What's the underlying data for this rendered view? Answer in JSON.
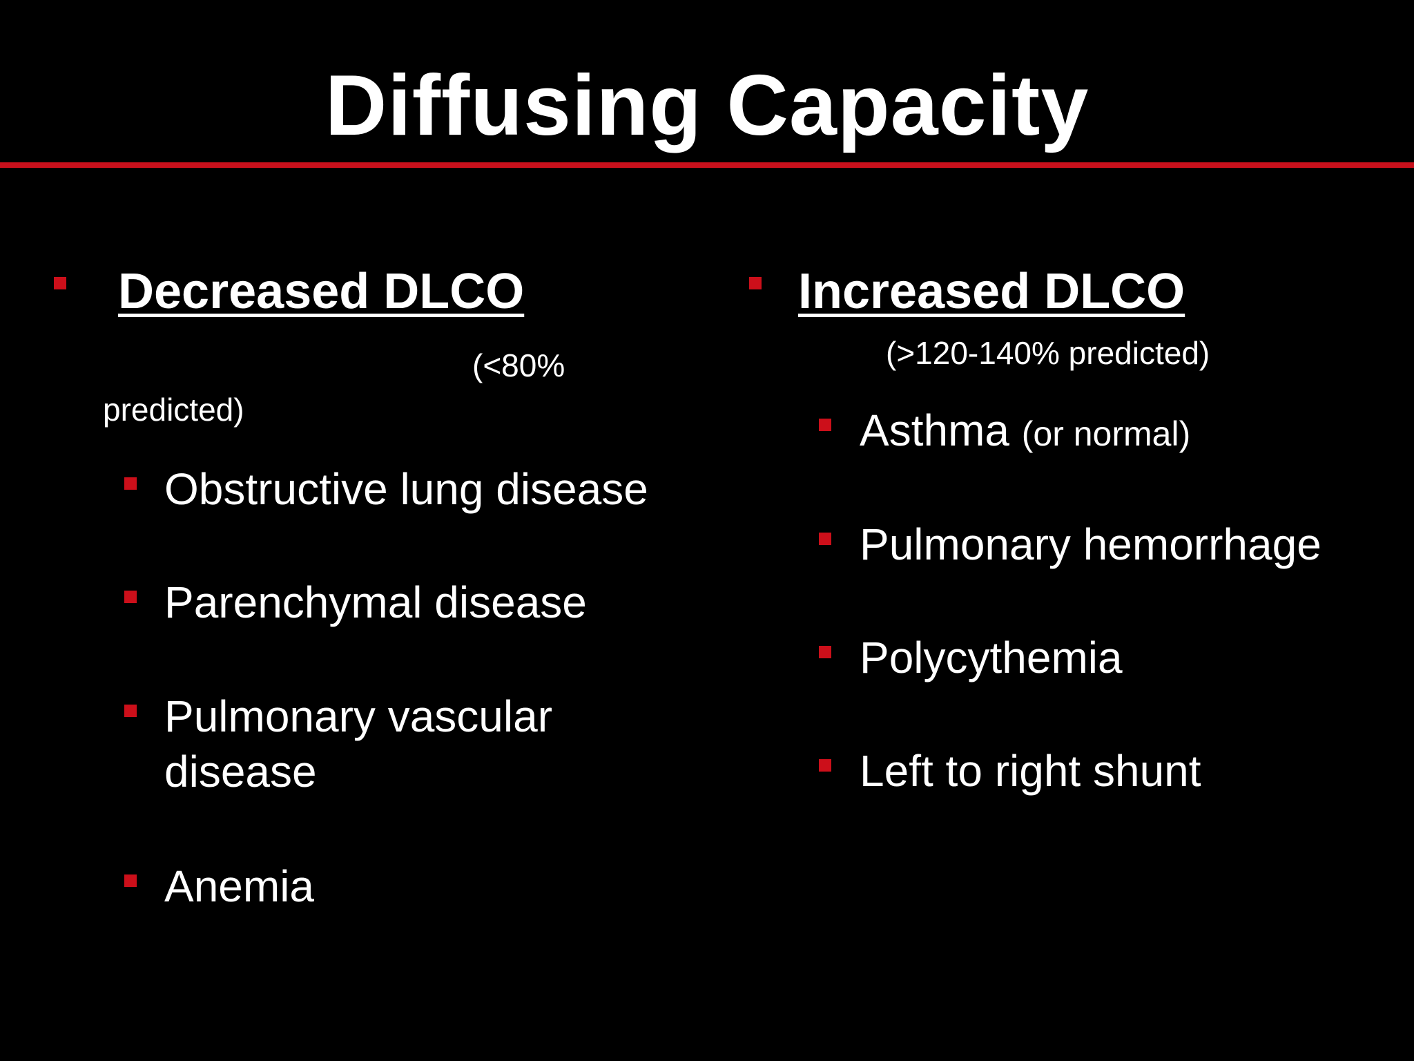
{
  "slide": {
    "title": "Diffusing Capacity",
    "accent_color": "#c8101c",
    "bullet_color": "#cc0f1a",
    "left_column": {
      "heading": "Decreased DLCO",
      "note_line1": "(<80%",
      "note_line2": "predicted)",
      "items": [
        {
          "line1": "Obstructive lung disease"
        },
        {
          "line1": "Parenchymal disease"
        },
        {
          "line1": "Pulmonary vascular",
          "line2": "disease"
        },
        {
          "line1": "Anemia"
        }
      ]
    },
    "right_column": {
      "heading": "Increased DLCO",
      "note": "(>120-140% predicted)",
      "items": [
        {
          "main": "Asthma",
          "suffix": "(or normal)"
        },
        {
          "main": "Pulmonary hemorrhage"
        },
        {
          "main": "Polycythemia"
        },
        {
          "main": "Left to right shunt"
        }
      ]
    }
  }
}
